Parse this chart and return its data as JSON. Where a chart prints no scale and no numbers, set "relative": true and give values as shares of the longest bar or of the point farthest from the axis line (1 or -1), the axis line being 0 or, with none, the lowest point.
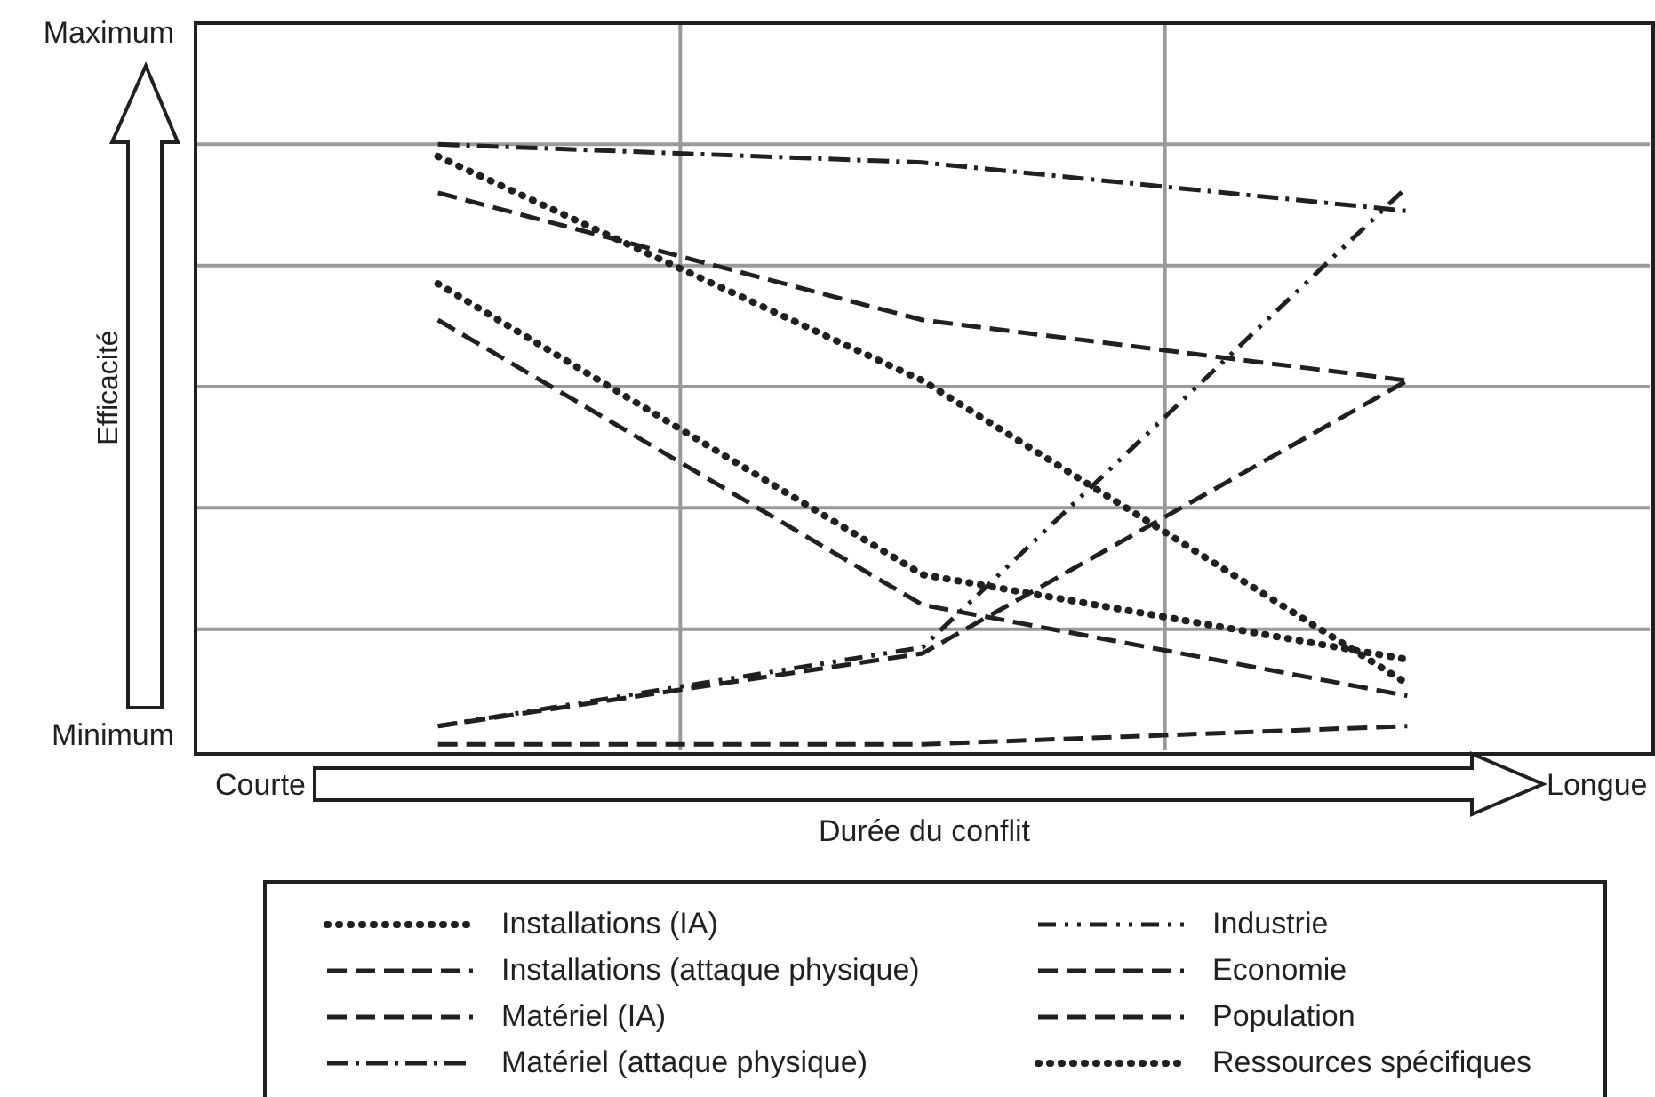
{
  "chart_data": {
    "type": "line",
    "relative": true,
    "xlabel": "Durée du conflit",
    "ylabel": "Efficacité",
    "categories": [
      null,
      null,
      null
    ],
    "annotations": [
      "Maximum",
      "Minimum",
      "Courte",
      "Longue"
    ],
    "grid": true,
    "legend": "bottom",
    "marker": "none",
    "series": [
      {
        "name": "Installations (IA)",
        "color": "#231f20",
        "line_style": "dotted",
        "values": [
          0.77,
          0.29,
          0.15
        ]
      },
      {
        "name": "Installations (attaque physique)",
        "color": "#231f20",
        "line_style": "dashed",
        "values": [
          0.92,
          0.71,
          0.61
        ]
      },
      {
        "name": "Matériel (IA)",
        "color": "#231f20",
        "line_style": "dashed",
        "values": [
          0.71,
          0.24,
          0.09
        ]
      },
      {
        "name": "Matériel (attaque physique)",
        "color": "#231f20",
        "line_style": "dashdot",
        "values": [
          1,
          0.97,
          0.89
        ]
      },
      {
        "name": "Industrie",
        "color": "#231f20",
        "line_style": "dashdotdot",
        "values": [
          0.04,
          0.17,
          0.93
        ]
      },
      {
        "name": "Economie",
        "color": "#231f20",
        "line_style": "dashed",
        "values": [
          0.04,
          0.16,
          0.61
        ]
      },
      {
        "name": "Population",
        "color": "#231f20",
        "line_style": "dashed",
        "values": [
          0.01,
          0.01,
          0.04
        ]
      },
      {
        "name": "Ressources spécifiques",
        "color": "#231f20",
        "line_style": "dotted",
        "values": [
          0.98,
          0.61,
          0.11
        ]
      }
    ]
  }
}
